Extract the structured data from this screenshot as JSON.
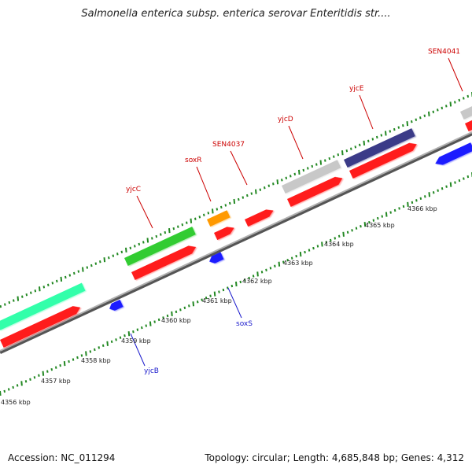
{
  "title": "Salmonella enterica subsp. enterica serovar Enteritidis str....",
  "footer": {
    "accession": "Accession: NC_011294",
    "stats": "Topology: circular; Length: 4,685,848 bp; Genes: 4,312"
  },
  "colors": {
    "cds": "#ff1a1a",
    "minus_cds": "#1a1aff",
    "backbone": "#8c8c8c",
    "tick": "#228822",
    "green_feature": "#33cc33",
    "teal_feature": "#33ffaa",
    "orange_feature": "#ff9900",
    "grey_feature": "#c8c8c8",
    "navy_feature": "#3a3a88",
    "label_plus": "#cc0000",
    "label_minus": "#1a1acc"
  },
  "kbp_labels": [
    "4356 kbp",
    "4357 kbp",
    "4358 kbp",
    "4359 kbp",
    "4360 kbp",
    "4361 kbp",
    "4362 kbp",
    "4363 kbp",
    "4364 kbp",
    "4365 kbp",
    "4366 kbp"
  ],
  "gene_labels_plus": [
    "yjcC",
    "soxR",
    "SEN4037",
    "yjcD",
    "yjcE",
    "SEN4041"
  ],
  "gene_labels_minus": [
    "soxS",
    "yjcB"
  ]
}
